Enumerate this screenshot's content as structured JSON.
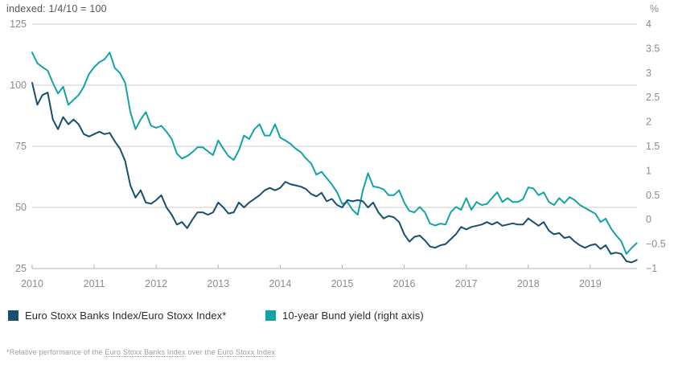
{
  "header": {
    "left_axis_note": "indexed: 1/4/10 = 100",
    "right_axis_unit": "%"
  },
  "legend": {
    "item1_label": "Euro Stoxx Banks Index/Euro Stoxx Index*",
    "item2_label": "10-year Bund yield (right axis)"
  },
  "footnote": {
    "prefix": "*Relative performance of the ",
    "link1": "Euro Stoxx Banks Index",
    "middle": " over the ",
    "link2": "Euro Stoxx Index"
  },
  "colors": {
    "navy": "#17506f",
    "teal": "#14a3a4",
    "gridline": "#cccccc",
    "axis_line": "#b5b5b5",
    "tick_text": "#8c8c8c"
  },
  "chart_data": {
    "type": "line",
    "title": "indexed: 1/4/10 = 100",
    "x_axis": {
      "range": [
        2010,
        2019.754
      ],
      "tick_years": [
        2010,
        2011,
        2012,
        2013,
        2014,
        2015,
        2016,
        2017,
        2018,
        2019
      ]
    },
    "left_axis": {
      "label": "indexed: 1/4/10 = 100",
      "range": [
        25,
        125
      ],
      "ticks": [
        125,
        100,
        75,
        50,
        25
      ]
    },
    "right_axis": {
      "label": "%",
      "range": [
        -1,
        4
      ],
      "ticks": [
        4,
        3.5,
        3,
        2.5,
        2,
        1.5,
        1,
        0.5,
        0,
        -0.5,
        -1
      ]
    },
    "gridlines_at_left_values": [
      125,
      100,
      75,
      50
    ],
    "legend_position": "bottom",
    "series": [
      {
        "name": "10-year Bund yield (right axis)",
        "axis": "right",
        "color": "#14a3a4",
        "start_year": 2010,
        "points_per_year": 12,
        "values": [
          3.42,
          3.2,
          3.12,
          3.05,
          2.8,
          2.58,
          2.72,
          2.35,
          2.45,
          2.55,
          2.72,
          2.98,
          3.12,
          3.22,
          3.28,
          3.42,
          3.1,
          3.0,
          2.8,
          2.2,
          1.85,
          2.05,
          2.2,
          1.92,
          1.88,
          1.92,
          1.8,
          1.65,
          1.35,
          1.25,
          1.3,
          1.38,
          1.48,
          1.48,
          1.4,
          1.32,
          1.62,
          1.45,
          1.3,
          1.22,
          1.42,
          1.72,
          1.65,
          1.85,
          1.95,
          1.72,
          1.72,
          1.95,
          1.68,
          1.62,
          1.55,
          1.45,
          1.38,
          1.25,
          1.15,
          0.92,
          0.98,
          0.85,
          0.72,
          0.56,
          0.32,
          0.36,
          0.2,
          0.1,
          0.6,
          0.95,
          0.68,
          0.66,
          0.62,
          0.5,
          0.5,
          0.6,
          0.35,
          0.18,
          0.15,
          0.26,
          0.15,
          -0.08,
          -0.12,
          -0.08,
          -0.1,
          0.15,
          0.26,
          0.2,
          0.44,
          0.2,
          0.36,
          0.3,
          0.32,
          0.44,
          0.56,
          0.36,
          0.44,
          0.36,
          0.36,
          0.42,
          0.66,
          0.64,
          0.5,
          0.56,
          0.36,
          0.3,
          0.44,
          0.34,
          0.46,
          0.4,
          0.3,
          0.24,
          0.18,
          0.12,
          -0.05,
          0.02,
          -0.18,
          -0.32,
          -0.44,
          -0.7,
          -0.58,
          -0.48
        ]
      },
      {
        "name": "Euro Stoxx Banks Index/Euro Stoxx Index*",
        "axis": "left",
        "color": "#17506f",
        "start_year": 2010,
        "points_per_year": 12,
        "values": [
          101,
          92,
          96,
          97,
          86,
          82,
          87,
          84,
          86,
          84,
          80,
          79,
          80,
          81,
          80,
          80.5,
          77,
          74,
          69,
          59,
          54,
          57,
          52,
          51.5,
          53,
          55,
          50,
          47,
          43,
          44,
          41.5,
          45,
          48,
          48,
          47,
          48,
          52,
          50,
          47.5,
          48,
          52,
          50,
          52,
          53.5,
          55,
          57,
          58,
          57,
          58,
          60.5,
          59.5,
          59,
          58.5,
          57.5,
          55.5,
          54.5,
          56,
          52.5,
          53.5,
          51,
          50,
          53,
          52.5,
          53,
          52.5,
          50,
          52,
          48,
          45.5,
          46.5,
          46,
          44,
          39,
          36,
          38,
          38.5,
          36.5,
          34,
          33.5,
          34.5,
          35,
          37,
          39,
          42,
          41,
          42,
          42.5,
          43,
          44,
          43,
          44,
          42.5,
          43,
          43.5,
          43,
          43,
          45.5,
          44,
          42.5,
          44,
          40.5,
          39,
          39.5,
          37.5,
          38,
          36,
          34.5,
          33.5,
          34.5,
          35,
          33,
          34.5,
          31,
          31.5,
          31,
          28,
          27.5,
          28.5
        ]
      }
    ]
  }
}
